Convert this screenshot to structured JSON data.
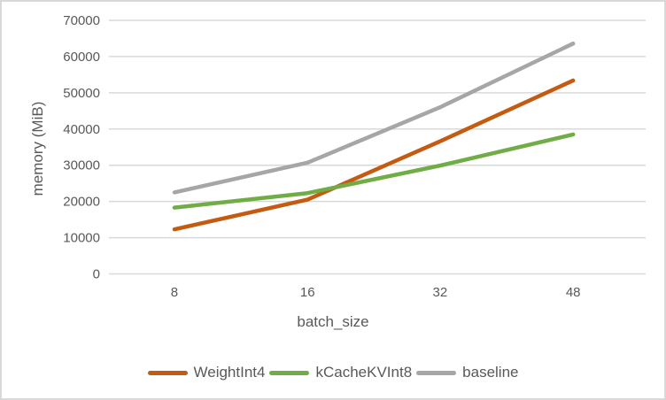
{
  "chart_data": {
    "type": "line",
    "title": "",
    "xlabel": "batch_size",
    "ylabel": "memory (MiB)",
    "categories": [
      "8",
      "16",
      "32",
      "48"
    ],
    "y_ticks": [
      0,
      10000,
      20000,
      30000,
      40000,
      50000,
      60000,
      70000
    ],
    "ylim": [
      0,
      70000
    ],
    "grid": "horizontal-only",
    "legend_position": "bottom",
    "series": [
      {
        "name": "WeightInt4",
        "color": "#C55A11",
        "values": [
          12300,
          20500,
          36600,
          53400
        ]
      },
      {
        "name": "kCacheKVInt8",
        "color": "#70AD47",
        "values": [
          18300,
          22300,
          29900,
          38500
        ]
      },
      {
        "name": "baseline",
        "color": "#A6A6A6",
        "values": [
          22500,
          30700,
          46000,
          63600
        ]
      }
    ]
  },
  "colors": {
    "text": "#595959",
    "gridline": "#D9D9D9",
    "border": "#D8D8D8",
    "background": "#FFFFFF"
  }
}
